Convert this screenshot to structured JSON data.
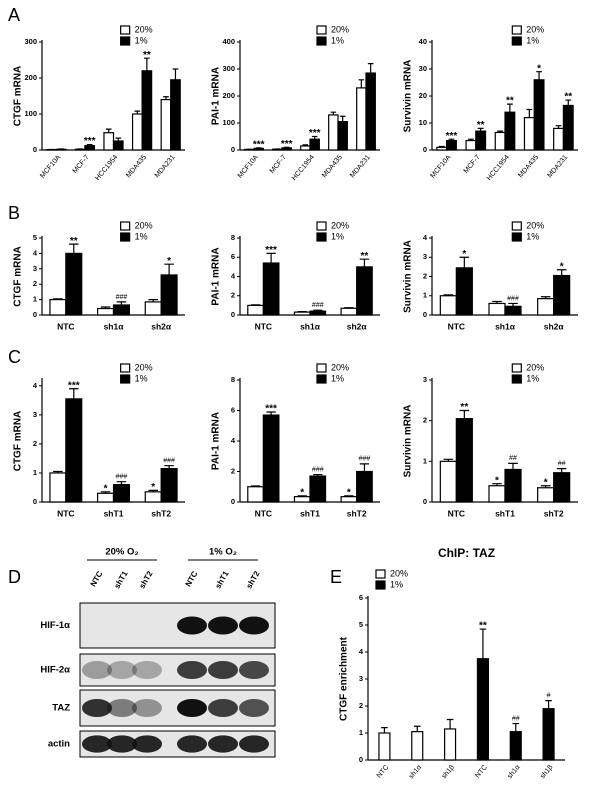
{
  "panel_labels": [
    "A",
    "B",
    "C",
    "D",
    "E"
  ],
  "chart_data": [
    {
      "type": "bar",
      "ylabel": "CTGF mRNA",
      "categories": [
        "MCF10A",
        "MCF-7",
        "HCC1954",
        "MDA435",
        "MDA231"
      ],
      "series": [
        {
          "name": "20%",
          "color": "#ffffff",
          "values": [
            1,
            2,
            48,
            100,
            140
          ],
          "errors": [
            0.5,
            1,
            10,
            8,
            8
          ]
        },
        {
          "name": "1%",
          "color": "#000000",
          "values": [
            2,
            12,
            25,
            220,
            195
          ],
          "errors": [
            1,
            3,
            8,
            35,
            30
          ],
          "labels": [
            null,
            "***",
            null,
            "**",
            null
          ]
        }
      ],
      "ylim": [
        0,
        300
      ],
      "yticks": [
        0,
        100,
        200,
        300
      ]
    },
    {
      "type": "bar",
      "ylabel": "PAI-1 mRNA",
      "categories": [
        "MCF10A",
        "MCF-7",
        "HCC1954",
        "MDA435",
        "MDA231"
      ],
      "series": [
        {
          "name": "20%",
          "color": "#ffffff",
          "values": [
            2,
            3,
            15,
            130,
            230
          ],
          "errors": [
            1,
            1,
            4,
            10,
            30
          ]
        },
        {
          "name": "1%",
          "color": "#000000",
          "values": [
            6,
            8,
            40,
            105,
            285
          ],
          "errors": [
            2,
            2,
            10,
            20,
            35
          ],
          "labels": [
            "***",
            "***",
            "***",
            null,
            null
          ]
        }
      ],
      "ylim": [
        0,
        400
      ],
      "yticks": [
        0,
        100,
        200,
        300,
        400
      ]
    },
    {
      "type": "bar",
      "ylabel": "Survivin mRNA",
      "categories": [
        "MCF10A",
        "MCF-7",
        "HCC1954",
        "MDA435",
        "MDA231"
      ],
      "series": [
        {
          "name": "20%",
          "color": "#ffffff",
          "values": [
            1,
            3.5,
            6.5,
            12,
            8
          ],
          "errors": [
            0.3,
            0.5,
            0.5,
            3,
            1
          ]
        },
        {
          "name": "1%",
          "color": "#000000",
          "values": [
            3.5,
            7,
            14,
            26,
            16.5
          ],
          "errors": [
            0.5,
            1,
            3,
            3,
            2
          ],
          "labels": [
            "***",
            "**",
            "**",
            "*",
            "**"
          ]
        }
      ],
      "ylim": [
        0,
        40
      ],
      "yticks": [
        0,
        10,
        20,
        30,
        40
      ]
    },
    {
      "type": "bar",
      "ylabel": "CTGF mRNA",
      "categories": [
        "NTC",
        "sh1α",
        "sh2α"
      ],
      "series": [
        {
          "name": "20%",
          "color": "#ffffff",
          "values": [
            1,
            0.42,
            0.85
          ],
          "errors": [
            0.05,
            0.1,
            0.15
          ]
        },
        {
          "name": "1%",
          "color": "#000000",
          "values": [
            4.0,
            0.65,
            2.6
          ],
          "errors": [
            0.6,
            0.2,
            0.7
          ],
          "labels": [
            "**",
            "###",
            "*"
          ]
        }
      ],
      "ylim": [
        0,
        5
      ],
      "yticks": [
        0,
        1,
        2,
        3,
        4,
        5
      ]
    },
    {
      "type": "bar",
      "ylabel": "PAI-1 mRNA",
      "categories": [
        "NTC",
        "sh1α",
        "sh2α"
      ],
      "series": [
        {
          "name": "20%",
          "color": "#ffffff",
          "values": [
            1.0,
            0.3,
            0.7
          ],
          "errors": [
            0.05,
            0.05,
            0.05
          ]
        },
        {
          "name": "1%",
          "color": "#000000",
          "values": [
            5.4,
            0.4,
            5.0
          ],
          "errors": [
            1.0,
            0.1,
            0.8
          ],
          "labels": [
            "***",
            "###",
            "**"
          ]
        }
      ],
      "ylim": [
        0,
        8
      ],
      "yticks": [
        0,
        2,
        4,
        6,
        8
      ]
    },
    {
      "type": "bar",
      "ylabel": "Survivin mRNA",
      "categories": [
        "NTC",
        "sh1α",
        "sh2α"
      ],
      "series": [
        {
          "name": "20%",
          "color": "#ffffff",
          "values": [
            1.0,
            0.6,
            0.85
          ],
          "errors": [
            0.05,
            0.1,
            0.1
          ]
        },
        {
          "name": "1%",
          "color": "#000000",
          "values": [
            2.45,
            0.45,
            2.05
          ],
          "errors": [
            0.55,
            0.15,
            0.3
          ],
          "labels": [
            "*",
            "###",
            "*"
          ]
        }
      ],
      "ylim": [
        0,
        4
      ],
      "yticks": [
        0,
        1,
        2,
        3,
        4
      ]
    },
    {
      "type": "bar",
      "ylabel": "CTGF mRNA",
      "categories": [
        "NTC",
        "shT1",
        "shT2"
      ],
      "series": [
        {
          "name": "20%",
          "color": "#ffffff",
          "values": [
            1.0,
            0.3,
            0.35
          ],
          "errors": [
            0.05,
            0.05,
            0.05
          ],
          "labels": [
            null,
            "*",
            "*"
          ]
        },
        {
          "name": "1%",
          "color": "#000000",
          "values": [
            3.55,
            0.6,
            1.15
          ],
          "errors": [
            0.35,
            0.1,
            0.1
          ],
          "labels": [
            "***",
            "###",
            "###"
          ]
        }
      ],
      "ylim": [
        0,
        4.2
      ],
      "yticks": [
        0,
        1,
        2,
        3,
        4
      ]
    },
    {
      "type": "bar",
      "ylabel": "PAI-1 mRNA",
      "categories": [
        "NTC",
        "shT1",
        "shT2"
      ],
      "series": [
        {
          "name": "20%",
          "color": "#ffffff",
          "values": [
            1.0,
            0.35,
            0.35
          ],
          "errors": [
            0.05,
            0.05,
            0.05
          ],
          "labels": [
            null,
            "*",
            "*"
          ]
        },
        {
          "name": "1%",
          "color": "#000000",
          "values": [
            5.7,
            1.7,
            2.0
          ],
          "errors": [
            0.2,
            0.1,
            0.5
          ],
          "labels": [
            "***",
            "###",
            "###"
          ]
        }
      ],
      "ylim": [
        0,
        8
      ],
      "yticks": [
        0,
        2,
        4,
        6,
        8
      ]
    },
    {
      "type": "bar",
      "ylabel": "Survivin mRNA",
      "categories": [
        "NTC",
        "shT1",
        "shT2"
      ],
      "series": [
        {
          "name": "20%",
          "color": "#ffffff",
          "values": [
            1.0,
            0.4,
            0.35
          ],
          "errors": [
            0.05,
            0.05,
            0.05
          ],
          "labels": [
            null,
            "*",
            "*"
          ]
        },
        {
          "name": "1%",
          "color": "#000000",
          "values": [
            2.05,
            0.8,
            0.72
          ],
          "errors": [
            0.2,
            0.15,
            0.1
          ],
          "labels": [
            "**",
            "##",
            "##"
          ]
        }
      ],
      "ylim": [
        0,
        3
      ],
      "yticks": [
        0,
        1,
        2,
        3
      ]
    },
    {
      "type": "bar",
      "title": "ChIP: TAZ",
      "ylabel": "CTGF enrichment",
      "categories": [
        "NTC",
        "sh1α",
        "sh1β",
        "NTC",
        "sh1α",
        "sh1β"
      ],
      "series": [
        {
          "name": "20%",
          "color": "#ffffff",
          "values": [
            1.0,
            1.05,
            1.15,
            null,
            null,
            null
          ],
          "errors": [
            0.2,
            0.2,
            0.35,
            null,
            null,
            null
          ]
        },
        {
          "name": "1%",
          "color": "#000000",
          "values": [
            null,
            null,
            null,
            3.75,
            1.05,
            1.9
          ],
          "errors": [
            null,
            null,
            null,
            1.1,
            0.3,
            0.3
          ],
          "labels": [
            null,
            null,
            null,
            "**",
            "##",
            "#"
          ]
        }
      ],
      "ylim": [
        0,
        6
      ],
      "yticks": [
        0,
        1,
        2,
        3,
        4,
        5,
        6
      ]
    }
  ],
  "blot": {
    "conditions": [
      "20% O₂",
      "1% O₂"
    ],
    "lanes": [
      "NTC",
      "shT1",
      "shT2",
      "NTC",
      "shT1",
      "shT2"
    ],
    "proteins": [
      "HIF-1α",
      "HIF-2α",
      "TAZ",
      "actin"
    ]
  }
}
